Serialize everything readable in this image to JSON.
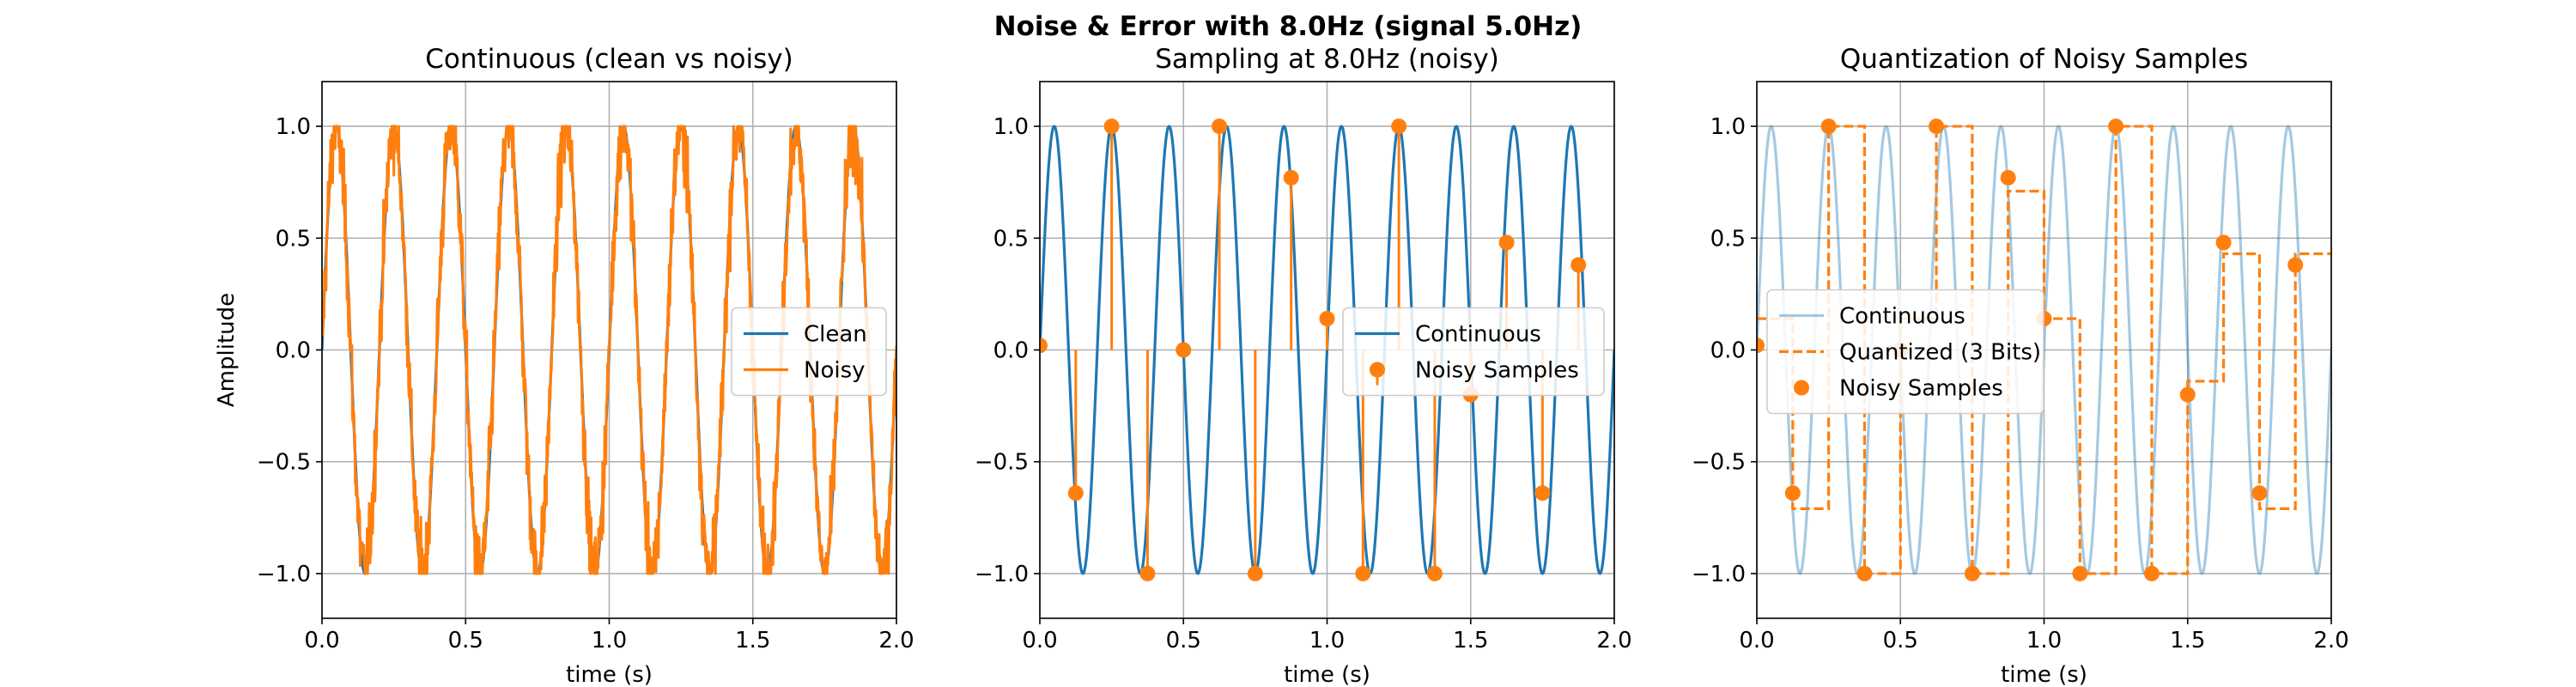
{
  "figure": {
    "suptitle": "Noise & Error with 8.0Hz (signal 5.0Hz)",
    "colors": {
      "blue": "#1f77b4",
      "orange": "#ff7f0e",
      "grid": "#b0b0b0"
    }
  },
  "chart_data": [
    {
      "type": "line",
      "title": "Continuous (clean vs noisy)",
      "xlabel": "time (s)",
      "ylabel": "Amplitude",
      "xlim": [
        0,
        2
      ],
      "ylim": [
        -1.2,
        1.2
      ],
      "xticks": [
        "0.0",
        "0.5",
        "1.0",
        "1.5",
        "2.0"
      ],
      "yticks": [
        "−1.0",
        "−0.5",
        "0.0",
        "0.5",
        "1.0"
      ],
      "grid": true,
      "legend_position": "center-right",
      "series": [
        {
          "name": "Clean",
          "kind": "line",
          "color": "#1f77b4",
          "function": "sin(2π·5·t)",
          "frequency_hz": 5
        },
        {
          "name": "Noisy",
          "kind": "noisy-line",
          "color": "#ff7f0e",
          "function": "sin(2π·5·t) + noise, clipped to [-1, 1]",
          "frequency_hz": 5
        }
      ]
    },
    {
      "type": "line",
      "title": "Sampling at 8.0Hz (noisy)",
      "xlabel": "time (s)",
      "ylabel": "",
      "xlim": [
        0,
        2
      ],
      "ylim": [
        -1.2,
        1.2
      ],
      "xticks": [
        "0.0",
        "0.5",
        "1.0",
        "1.5",
        "2.0"
      ],
      "yticks": [
        "−1.0",
        "−0.5",
        "0.0",
        "0.5",
        "1.0"
      ],
      "grid": true,
      "legend_position": "center-right",
      "series": [
        {
          "name": "Continuous",
          "kind": "line",
          "color": "#1f77b4",
          "function": "sin(2π·5·t)",
          "frequency_hz": 5
        },
        {
          "name": "Noisy Samples",
          "kind": "stem",
          "color": "#ff7f0e",
          "x": [
            0,
            0.125,
            0.25,
            0.375,
            0.5,
            0.625,
            0.75,
            0.875,
            1.0,
            1.125,
            1.25,
            1.375,
            1.5,
            1.625,
            1.75,
            1.875
          ],
          "y": [
            0.02,
            -0.64,
            1.0,
            -1.0,
            0.0,
            1.0,
            -1.0,
            0.77,
            0.14,
            -1.0,
            1.0,
            -1.0,
            -0.2,
            0.48,
            -0.64,
            0.38
          ]
        }
      ]
    },
    {
      "type": "line",
      "title": "Quantization of Noisy Samples",
      "xlabel": "time (s)",
      "ylabel": "",
      "xlim": [
        0,
        2
      ],
      "ylim": [
        -1.2,
        1.2
      ],
      "xticks": [
        "0.0",
        "0.5",
        "1.0",
        "1.5",
        "2.0"
      ],
      "yticks": [
        "−1.0",
        "−0.5",
        "0.0",
        "0.5",
        "1.0"
      ],
      "grid": true,
      "legend_position": "center-left",
      "series": [
        {
          "name": "Continuous",
          "kind": "faint-line",
          "color": "#1f77b4",
          "function": "sin(2π·5·t)",
          "frequency_hz": 5
        },
        {
          "name": "Quantized (3 Bits)",
          "kind": "dashed-step",
          "color": "#ff7f0e",
          "x": [
            0,
            0.125,
            0.25,
            0.375,
            0.5,
            0.625,
            0.75,
            0.875,
            1.0,
            1.125,
            1.25,
            1.375,
            1.5,
            1.625,
            1.75,
            1.875
          ],
          "y": [
            0.14,
            -0.71,
            1.0,
            -1.0,
            0.14,
            1.0,
            -1.0,
            0.71,
            0.14,
            -1.0,
            1.0,
            -1.0,
            -0.14,
            0.43,
            -0.71,
            0.43
          ]
        },
        {
          "name": "Noisy Samples",
          "kind": "points",
          "color": "#ff7f0e",
          "x": [
            0,
            0.125,
            0.25,
            0.375,
            0.5,
            0.625,
            0.75,
            0.875,
            1.0,
            1.125,
            1.25,
            1.375,
            1.5,
            1.625,
            1.75,
            1.875
          ],
          "y": [
            0.02,
            -0.64,
            1.0,
            -1.0,
            0.0,
            1.0,
            -1.0,
            0.77,
            0.14,
            -1.0,
            1.0,
            -1.0,
            -0.2,
            0.48,
            -0.64,
            0.38
          ]
        }
      ]
    }
  ]
}
